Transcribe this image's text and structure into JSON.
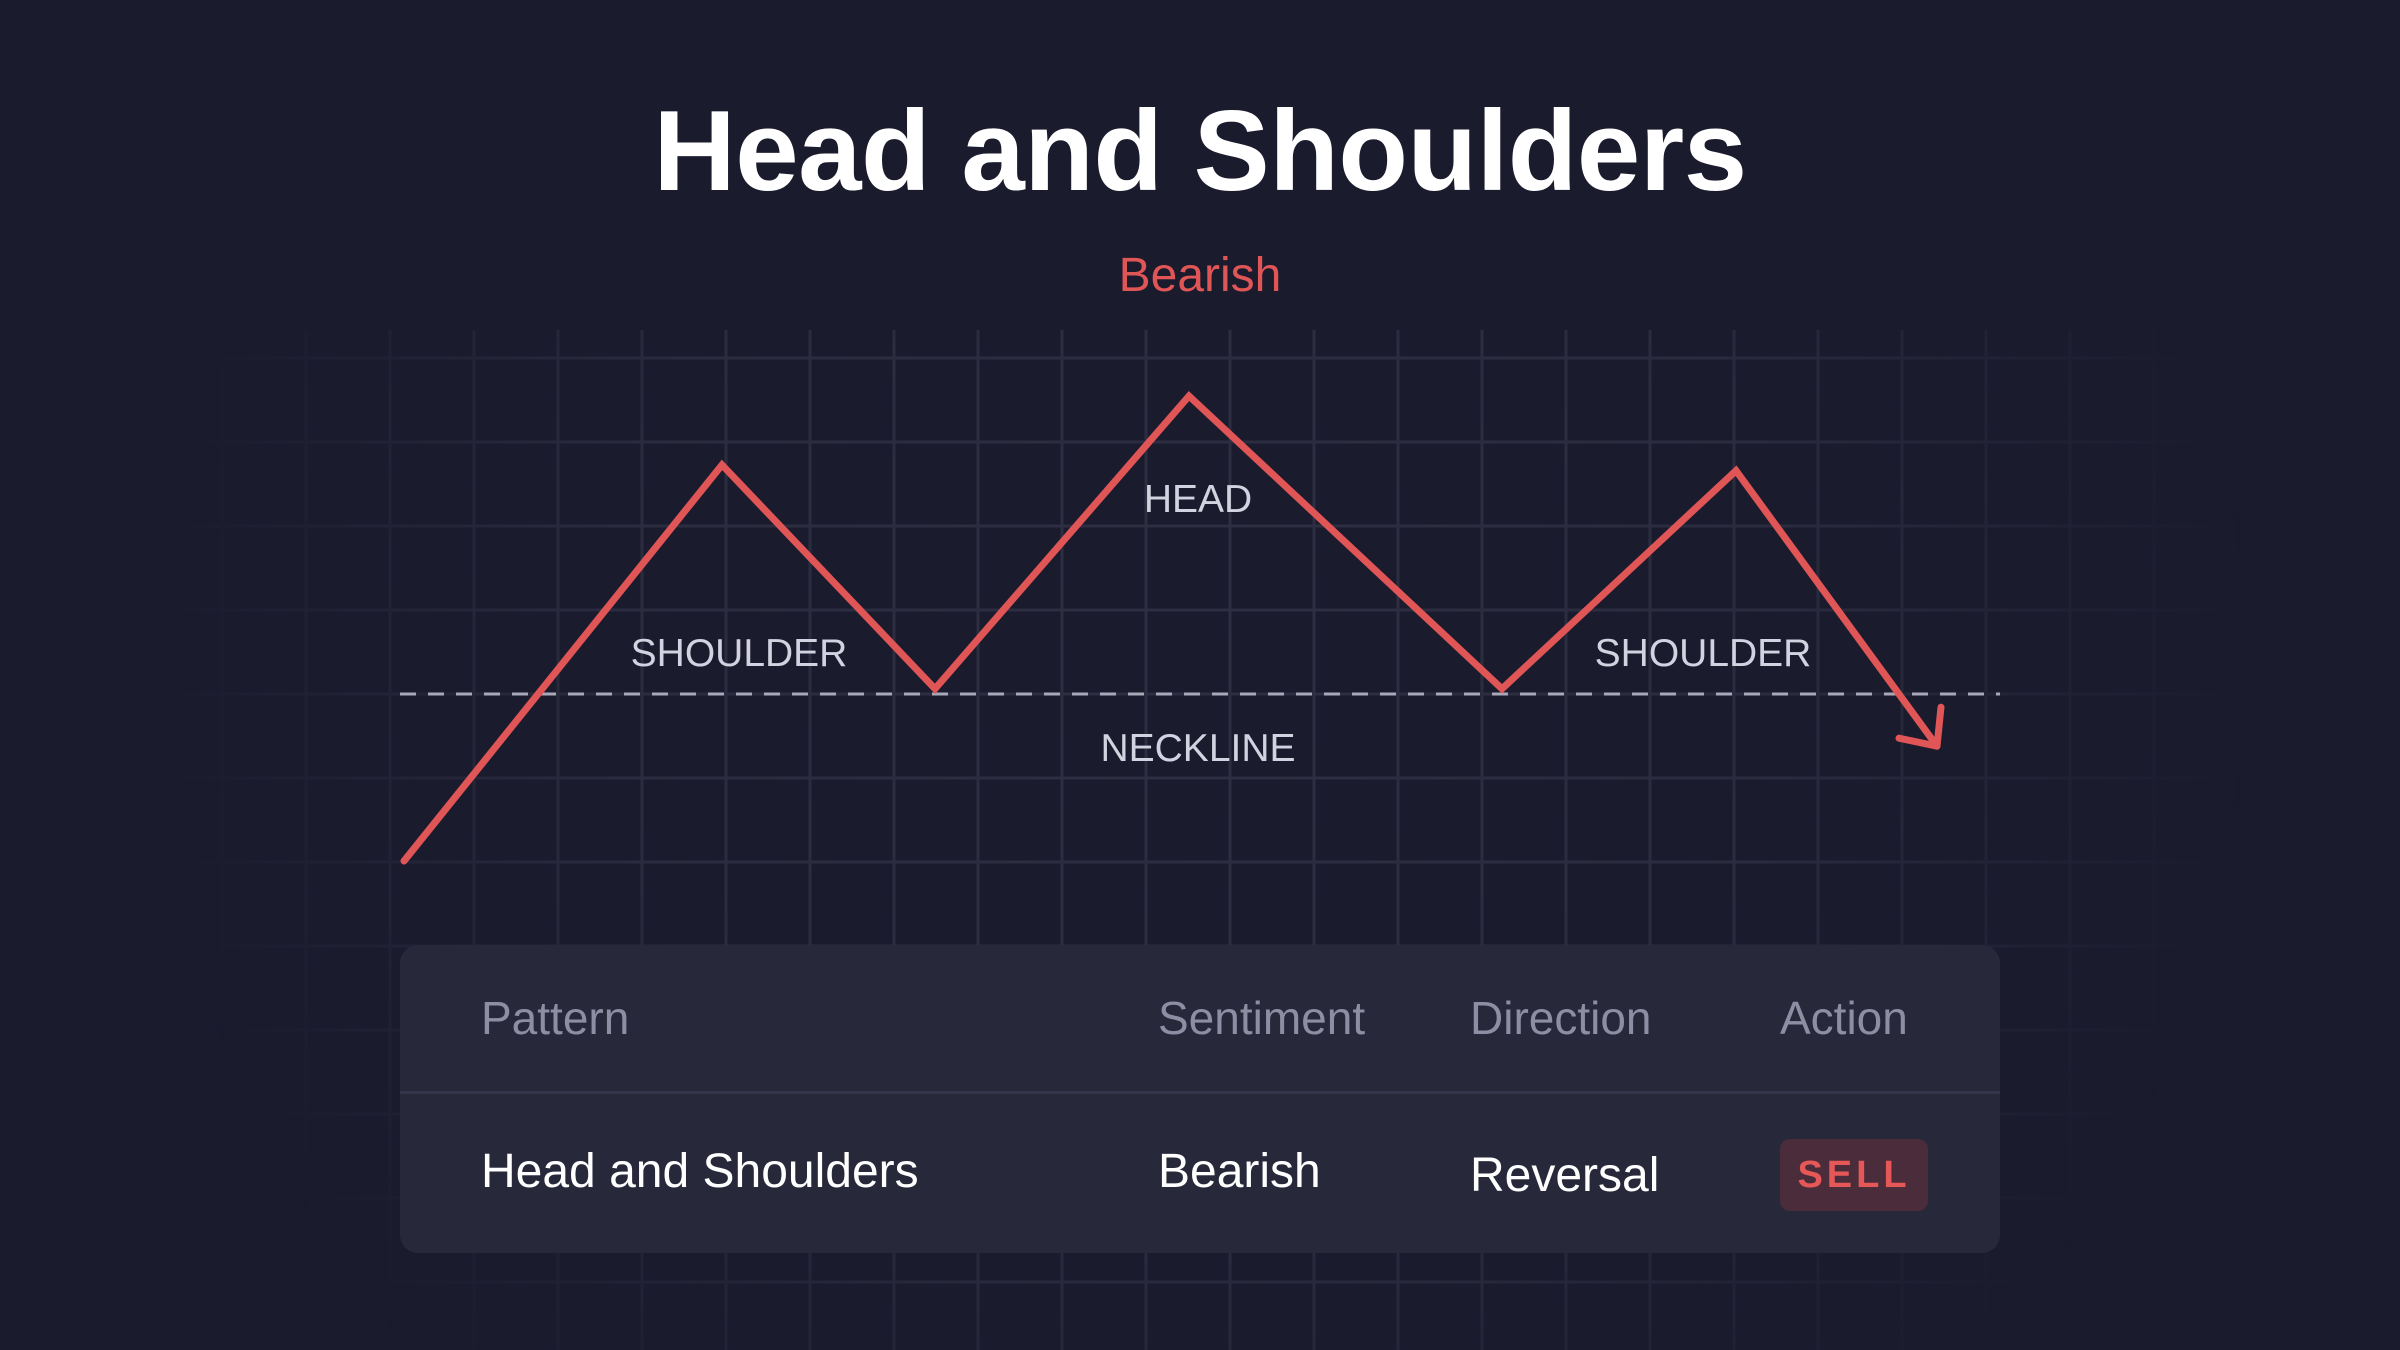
{
  "header": {
    "title": "Head and Shoulders",
    "subtitle": "Bearish"
  },
  "diagram": {
    "labels": {
      "left_shoulder": "SHOULDER",
      "head": "HEAD",
      "right_shoulder": "SHOULDER",
      "neckline": "NECKLINE"
    },
    "price_path": [
      0,
      69,
      30,
      81,
      30,
      68,
      20
    ],
    "neckline_level": 33,
    "colors": {
      "line": "#e05555",
      "neckline": "#a8a8b8",
      "grid": "#2e2f42"
    }
  },
  "table": {
    "headers": [
      "Pattern",
      "Sentiment",
      "Direction",
      "Action"
    ],
    "row": {
      "pattern": "Head and Shoulders",
      "sentiment": "Bearish",
      "direction": "Reversal",
      "action": "SELL"
    }
  }
}
